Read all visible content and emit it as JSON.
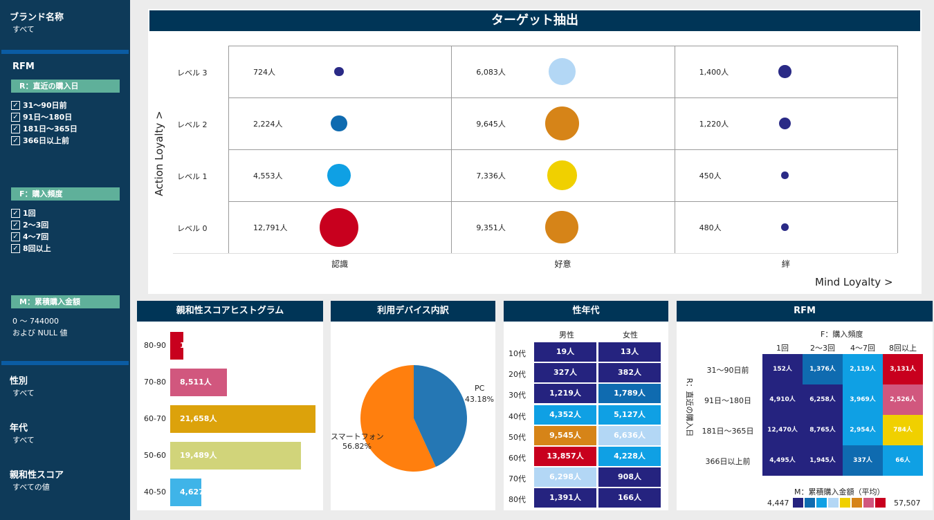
{
  "sidebar": {
    "brand": {
      "label": "ブランド名称",
      "value": "すべて"
    },
    "rfm_header": "RFM",
    "r_chip": "R：直近の購入日",
    "r_items": [
      "31～90日前",
      "91日～180日",
      "181日～365日",
      "366日以上前"
    ],
    "f_chip": "F：購入頻度",
    "f_items": [
      "1回",
      "2～3回",
      "4～7回",
      "8回以上"
    ],
    "m_chip": "M：累積購入金額",
    "m_range": "0 ～ 744000",
    "m_null": "および NULL 値",
    "gender": {
      "label": "性別",
      "value": "すべて"
    },
    "age": {
      "label": "年代",
      "value": "すべて"
    },
    "affinity": {
      "label": "親和性スコア",
      "value": "すべての値"
    },
    "check_mark": "✓"
  },
  "target": {
    "title": "ターゲット抽出",
    "y_axis": "Action Loyalty >",
    "x_axis": "Mind Loyalty >",
    "levels": [
      "レベル 3",
      "レベル 2",
      "レベル 1",
      "レベル 0"
    ],
    "columns": [
      "認識",
      "好意",
      "絆"
    ],
    "counts": [
      [
        "724人",
        "6,083人",
        "1,400人"
      ],
      [
        "2,224人",
        "9,645人",
        "1,220人"
      ],
      [
        "4,553人",
        "7,336人",
        "450人"
      ],
      [
        "12,791人",
        "9,351人",
        "480人"
      ]
    ],
    "values": [
      [
        724,
        6083,
        1400
      ],
      [
        2224,
        9645,
        1220
      ],
      [
        4553,
        7336,
        450
      ],
      [
        12791,
        9351,
        480
      ]
    ],
    "bubble_colors": [
      [
        "#2a2a86",
        "#b3d7f5",
        "#2a2a86"
      ],
      [
        "#0f6bb0",
        "#d68418",
        "#2a2a86"
      ],
      [
        "#0fa0e4",
        "#f0d000",
        "#2a2a86"
      ],
      [
        "#c8001e",
        "#d68418",
        "#2a2a86"
      ]
    ]
  },
  "histogram": {
    "title": "親和性スコアヒストグラム",
    "bins": [
      {
        "label": "80-90",
        "text": "1",
        "color": "#c8001e"
      },
      {
        "label": "70-80",
        "text": "8,511人",
        "color": "#d1577e"
      },
      {
        "label": "60-70",
        "text": "21,658人",
        "color": "#dca20b"
      },
      {
        "label": "50-60",
        "text": "19,489人",
        "color": "#d1d47a"
      },
      {
        "label": "40-50",
        "text": "4,627",
        "color": "#3fb4e8"
      }
    ]
  },
  "device": {
    "title": "利用デバイス内訳",
    "pc_label": "PC",
    "pc_pct": "43.18%",
    "sp_label": "スマートフォン",
    "sp_pct": "56.82%",
    "pc_value": 43.18,
    "sp_value": 56.82,
    "pc_color": "#2577b4",
    "sp_color": "#ff7f0e"
  },
  "gender_age": {
    "title": "性年代",
    "male": "男性",
    "female": "女性",
    "ages": [
      "10代",
      "20代",
      "30代",
      "40代",
      "50代",
      "60代",
      "70代",
      "80代"
    ],
    "male_values": [
      "19人",
      "327人",
      "1,219人",
      "4,352人",
      "9,545人",
      "13,857人",
      "6,298人",
      "1,391人"
    ],
    "female_values": [
      "13人",
      "382人",
      "1,789人",
      "5,127人",
      "6,636人",
      "4,228人",
      "908人",
      "166人"
    ],
    "male_colors": [
      "#25237f",
      "#25237f",
      "#25237f",
      "#0fa0e4",
      "#d68418",
      "#c8001e",
      "#b3d7f5",
      "#25237f"
    ],
    "female_colors": [
      "#25237f",
      "#25237f",
      "#0f6bb0",
      "#0fa0e4",
      "#b3d7f5",
      "#0fa0e4",
      "#25237f",
      "#25237f"
    ]
  },
  "rfm": {
    "title": "RFM",
    "f_title": "F：購入頻度",
    "f_cols": [
      "1回",
      "2～3回",
      "4～7回",
      "8回以上"
    ],
    "r_title": "R：直近の購入日",
    "r_rows": [
      "31～90日前",
      "91日～180日",
      "181日～365日",
      "366日以上前"
    ],
    "cells": [
      [
        "152人",
        "1,376人",
        "2,119人",
        "3,131人"
      ],
      [
        "4,910人",
        "6,258人",
        "3,969人",
        "2,526人"
      ],
      [
        "12,470人",
        "8,765人",
        "2,954人",
        "784人"
      ],
      [
        "4,495人",
        "1,945人",
        "337人",
        "66人"
      ]
    ],
    "colors": [
      [
        "#25237f",
        "#0f6bb0",
        "#0fa0e4",
        "#c8001e"
      ],
      [
        "#25237f",
        "#25237f",
        "#0fa0e4",
        "#d1577e"
      ],
      [
        "#25237f",
        "#25237f",
        "#0fa0e4",
        "#f0d000"
      ],
      [
        "#25237f",
        "#25237f",
        "#0f6bb0",
        "#0fa0e4"
      ]
    ],
    "legend_title": "M：累積購入金額（平均）",
    "legend_min": "4,447",
    "legend_max": "57,507",
    "legend_colors": [
      "#25237f",
      "#0f6bb0",
      "#0fa0e4",
      "#b3d7f5",
      "#f0d000",
      "#d68418",
      "#d1577e",
      "#c8001e"
    ]
  }
}
